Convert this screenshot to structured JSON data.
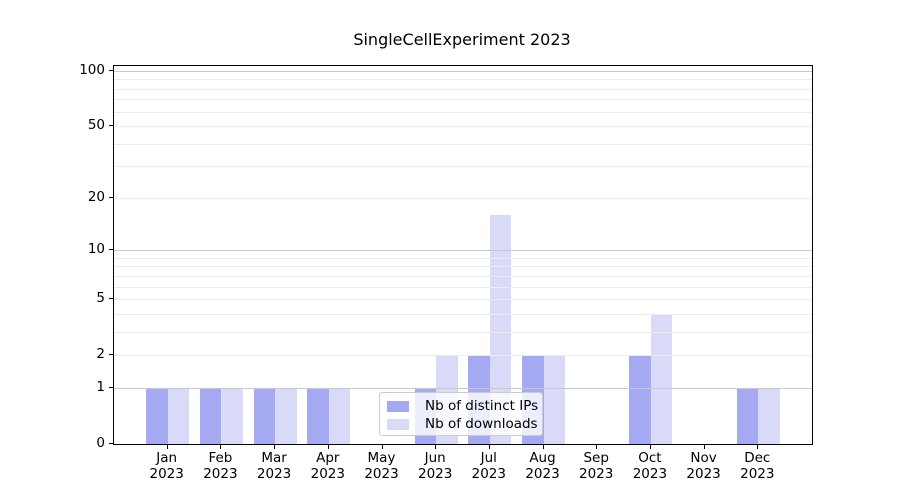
{
  "chart_data": {
    "type": "bar",
    "title": "SingleCellExperiment 2023",
    "year": "2023",
    "months": [
      "Jan",
      "Feb",
      "Mar",
      "Apr",
      "May",
      "Jun",
      "Jul",
      "Aug",
      "Sep",
      "Oct",
      "Nov",
      "Dec"
    ],
    "series": [
      {
        "name": "Nb of distinct IPs",
        "color": "#a5a9f2",
        "values": [
          1,
          1,
          1,
          1,
          0,
          1,
          2,
          2,
          0,
          2,
          0,
          1
        ]
      },
      {
        "name": "Nb of downloads",
        "color": "#d8daf8",
        "values": [
          1,
          1,
          1,
          1,
          0,
          2,
          16,
          2,
          0,
          4,
          0,
          1
        ]
      }
    ],
    "y_axis": {
      "scale": "log1p",
      "ticks": [
        0,
        1,
        2,
        5,
        10,
        20,
        50,
        100
      ],
      "max": 106
    },
    "grid": {
      "major": [
        1,
        10,
        100
      ],
      "minor": [
        2,
        3,
        4,
        5,
        6,
        7,
        8,
        9,
        20,
        30,
        40,
        50,
        60,
        70,
        80,
        90
      ],
      "major_color": "#c9c9c9",
      "minor_color": "#ededed"
    },
    "legend": {
      "position": "lower center"
    }
  }
}
